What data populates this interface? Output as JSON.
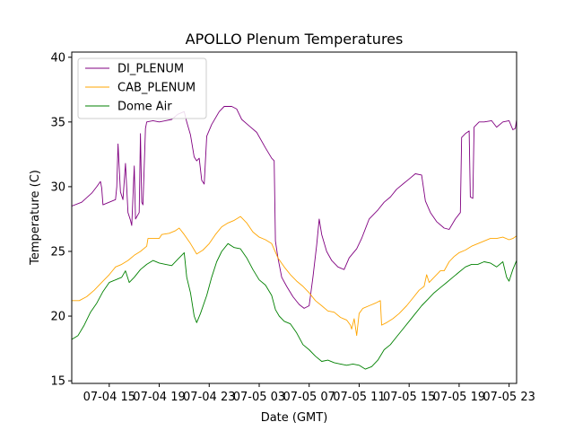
{
  "chart_data": {
    "type": "line",
    "title": "APOLLO Plenum Temperatures",
    "xlabel": "Date (GMT)",
    "ylabel": "Temperature (C)",
    "x_unit": "hours since 07-04 12:00 GMT",
    "xlim": [
      0,
      35.6
    ],
    "ylim": [
      14.8,
      40.4
    ],
    "yticks": [
      15,
      20,
      25,
      30,
      35,
      40
    ],
    "xticks": [
      {
        "x": 3,
        "label": "07-04 15"
      },
      {
        "x": 7,
        "label": "07-04 19"
      },
      {
        "x": 11,
        "label": "07-04 23"
      },
      {
        "x": 15,
        "label": "07-05 03"
      },
      {
        "x": 19,
        "label": "07-05 07"
      },
      {
        "x": 23,
        "label": "07-05 11"
      },
      {
        "x": 27,
        "label": "07-05 15"
      },
      {
        "x": 31,
        "label": "07-05 19"
      },
      {
        "x": 35,
        "label": "07-05 23"
      }
    ],
    "legend_position": "top-left",
    "series": [
      {
        "name": "DI_PLENUM",
        "color": "#800080",
        "points": [
          [
            0,
            28.5
          ],
          [
            0.8,
            28.8
          ],
          [
            1.6,
            29.5
          ],
          [
            2.0,
            30.0
          ],
          [
            2.3,
            30.4
          ],
          [
            2.4,
            29.9
          ],
          [
            2.5,
            28.6
          ],
          [
            3.0,
            28.8
          ],
          [
            3.5,
            29.0
          ],
          [
            3.6,
            30.0
          ],
          [
            3.7,
            33.3
          ],
          [
            3.8,
            31.5
          ],
          [
            3.9,
            29.6
          ],
          [
            4.1,
            29.0
          ],
          [
            4.3,
            31.8
          ],
          [
            4.5,
            28.0
          ],
          [
            4.7,
            27.4
          ],
          [
            4.8,
            27.0
          ],
          [
            5.0,
            31.6
          ],
          [
            5.1,
            27.5
          ],
          [
            5.4,
            28.0
          ],
          [
            5.5,
            34.1
          ],
          [
            5.6,
            28.8
          ],
          [
            5.7,
            28.6
          ],
          [
            5.9,
            34.5
          ],
          [
            6.0,
            35.0
          ],
          [
            6.5,
            35.1
          ],
          [
            7.0,
            35.0
          ],
          [
            7.5,
            35.1
          ],
          [
            8.0,
            35.2
          ],
          [
            8.5,
            35.6
          ],
          [
            9.0,
            35.8
          ],
          [
            9.2,
            35.0
          ],
          [
            9.5,
            34.0
          ],
          [
            9.8,
            32.3
          ],
          [
            10.0,
            32.0
          ],
          [
            10.2,
            32.2
          ],
          [
            10.4,
            30.5
          ],
          [
            10.6,
            30.2
          ],
          [
            10.8,
            33.9
          ],
          [
            11.2,
            34.8
          ],
          [
            11.8,
            35.8
          ],
          [
            12.2,
            36.2
          ],
          [
            12.8,
            36.2
          ],
          [
            13.2,
            36.0
          ],
          [
            13.6,
            35.2
          ],
          [
            14.2,
            34.7
          ],
          [
            14.8,
            34.2
          ],
          [
            15.5,
            33.0
          ],
          [
            16.0,
            32.2
          ],
          [
            16.2,
            32.0
          ],
          [
            16.3,
            25.8
          ],
          [
            16.5,
            24.5
          ],
          [
            16.8,
            23.0
          ],
          [
            17.2,
            22.3
          ],
          [
            17.7,
            21.5
          ],
          [
            18.2,
            20.9
          ],
          [
            18.6,
            20.6
          ],
          [
            19.0,
            20.8
          ],
          [
            19.3,
            23.0
          ],
          [
            19.6,
            25.5
          ],
          [
            19.8,
            27.5
          ],
          [
            20.0,
            26.3
          ],
          [
            20.4,
            25.0
          ],
          [
            20.8,
            24.3
          ],
          [
            21.3,
            23.8
          ],
          [
            21.8,
            23.6
          ],
          [
            22.2,
            24.5
          ],
          [
            22.8,
            25.2
          ],
          [
            23.2,
            26.0
          ],
          [
            23.8,
            27.5
          ],
          [
            24.5,
            28.2
          ],
          [
            25.0,
            28.8
          ],
          [
            25.5,
            29.2
          ],
          [
            26.0,
            29.8
          ],
          [
            26.5,
            30.2
          ],
          [
            27.0,
            30.6
          ],
          [
            27.5,
            31.0
          ],
          [
            28.0,
            30.9
          ],
          [
            28.3,
            28.9
          ],
          [
            28.7,
            28.0
          ],
          [
            29.2,
            27.3
          ],
          [
            29.8,
            26.8
          ],
          [
            30.2,
            26.7
          ],
          [
            30.7,
            27.5
          ],
          [
            31.1,
            28.0
          ],
          [
            31.2,
            33.8
          ],
          [
            31.5,
            34.1
          ],
          [
            31.8,
            34.3
          ],
          [
            31.9,
            29.2
          ],
          [
            32.1,
            29.1
          ],
          [
            32.2,
            34.6
          ],
          [
            32.6,
            35.0
          ],
          [
            33.0,
            35.0
          ],
          [
            33.6,
            35.1
          ],
          [
            34.0,
            34.6
          ],
          [
            34.5,
            35.0
          ],
          [
            35.0,
            35.1
          ],
          [
            35.3,
            34.4
          ],
          [
            35.5,
            34.5
          ],
          [
            35.6,
            35.2
          ]
        ]
      },
      {
        "name": "CAB_PLENUM",
        "color": "#ffa500",
        "points": [
          [
            0,
            21.2
          ],
          [
            0.6,
            21.2
          ],
          [
            1.2,
            21.5
          ],
          [
            1.8,
            22.0
          ],
          [
            2.5,
            22.7
          ],
          [
            3.0,
            23.2
          ],
          [
            3.5,
            23.8
          ],
          [
            4.0,
            24.0
          ],
          [
            4.5,
            24.3
          ],
          [
            5.0,
            24.7
          ],
          [
            5.5,
            25.0
          ],
          [
            6.0,
            25.4
          ],
          [
            6.1,
            26.0
          ],
          [
            6.5,
            26.0
          ],
          [
            7.0,
            26.0
          ],
          [
            7.2,
            26.3
          ],
          [
            7.8,
            26.4
          ],
          [
            8.3,
            26.6
          ],
          [
            8.6,
            26.8
          ],
          [
            9.0,
            26.3
          ],
          [
            9.5,
            25.6
          ],
          [
            10.0,
            24.8
          ],
          [
            10.5,
            25.1
          ],
          [
            11.0,
            25.6
          ],
          [
            11.5,
            26.3
          ],
          [
            12.0,
            26.9
          ],
          [
            12.5,
            27.2
          ],
          [
            13.0,
            27.4
          ],
          [
            13.5,
            27.7
          ],
          [
            14.0,
            27.2
          ],
          [
            14.5,
            26.5
          ],
          [
            15.0,
            26.1
          ],
          [
            15.5,
            25.9
          ],
          [
            16.0,
            25.6
          ],
          [
            16.5,
            24.5
          ],
          [
            17.0,
            23.8
          ],
          [
            17.5,
            23.2
          ],
          [
            18.0,
            22.7
          ],
          [
            18.5,
            22.3
          ],
          [
            19.0,
            21.8
          ],
          [
            19.5,
            21.2
          ],
          [
            20.0,
            20.8
          ],
          [
            20.5,
            20.4
          ],
          [
            21.0,
            20.3
          ],
          [
            21.5,
            19.9
          ],
          [
            22.0,
            19.7
          ],
          [
            22.3,
            19.3
          ],
          [
            22.4,
            19.0
          ],
          [
            22.6,
            19.8
          ],
          [
            22.8,
            18.5
          ],
          [
            23.0,
            20.2
          ],
          [
            23.3,
            20.6
          ],
          [
            23.8,
            20.8
          ],
          [
            24.3,
            21.0
          ],
          [
            24.7,
            21.2
          ],
          [
            24.8,
            19.3
          ],
          [
            25.2,
            19.5
          ],
          [
            25.7,
            19.8
          ],
          [
            26.2,
            20.2
          ],
          [
            26.8,
            20.8
          ],
          [
            27.3,
            21.4
          ],
          [
            27.8,
            22.0
          ],
          [
            28.2,
            22.3
          ],
          [
            28.4,
            23.2
          ],
          [
            28.6,
            22.6
          ],
          [
            29.0,
            23.0
          ],
          [
            29.5,
            23.5
          ],
          [
            29.8,
            23.5
          ],
          [
            30.2,
            24.2
          ],
          [
            30.6,
            24.6
          ],
          [
            31.0,
            24.9
          ],
          [
            31.5,
            25.1
          ],
          [
            32.0,
            25.4
          ],
          [
            32.5,
            25.6
          ],
          [
            33.0,
            25.8
          ],
          [
            33.5,
            26.0
          ],
          [
            34.0,
            26.0
          ],
          [
            34.5,
            26.1
          ],
          [
            35.0,
            25.9
          ],
          [
            35.3,
            26.0
          ],
          [
            35.6,
            26.2
          ]
        ]
      },
      {
        "name": "Dome Air",
        "color": "#008000",
        "points": [
          [
            0,
            18.2
          ],
          [
            0.5,
            18.5
          ],
          [
            1.0,
            19.3
          ],
          [
            1.5,
            20.3
          ],
          [
            2.0,
            21.0
          ],
          [
            2.5,
            21.9
          ],
          [
            3.0,
            22.6
          ],
          [
            3.5,
            22.8
          ],
          [
            4.0,
            23.0
          ],
          [
            4.3,
            23.5
          ],
          [
            4.6,
            22.6
          ],
          [
            5.0,
            23.0
          ],
          [
            5.5,
            23.6
          ],
          [
            6.0,
            24.0
          ],
          [
            6.5,
            24.3
          ],
          [
            7.0,
            24.1
          ],
          [
            7.5,
            24.0
          ],
          [
            8.0,
            23.9
          ],
          [
            8.5,
            24.4
          ],
          [
            9.0,
            24.9
          ],
          [
            9.2,
            23.0
          ],
          [
            9.5,
            21.8
          ],
          [
            9.8,
            20.0
          ],
          [
            10.0,
            19.5
          ],
          [
            10.3,
            20.2
          ],
          [
            10.8,
            21.6
          ],
          [
            11.2,
            23.0
          ],
          [
            11.6,
            24.2
          ],
          [
            12.0,
            25.0
          ],
          [
            12.5,
            25.6
          ],
          [
            13.0,
            25.3
          ],
          [
            13.5,
            25.2
          ],
          [
            14.0,
            24.5
          ],
          [
            14.5,
            23.6
          ],
          [
            15.0,
            22.8
          ],
          [
            15.5,
            22.4
          ],
          [
            16.0,
            21.6
          ],
          [
            16.3,
            20.5
          ],
          [
            16.6,
            20.0
          ],
          [
            17.0,
            19.6
          ],
          [
            17.5,
            19.4
          ],
          [
            18.0,
            18.7
          ],
          [
            18.5,
            17.8
          ],
          [
            19.0,
            17.4
          ],
          [
            19.5,
            16.9
          ],
          [
            20.0,
            16.5
          ],
          [
            20.5,
            16.6
          ],
          [
            21.0,
            16.4
          ],
          [
            21.5,
            16.3
          ],
          [
            22.0,
            16.2
          ],
          [
            22.5,
            16.3
          ],
          [
            23.0,
            16.2
          ],
          [
            23.5,
            15.9
          ],
          [
            24.0,
            16.1
          ],
          [
            24.5,
            16.6
          ],
          [
            25.0,
            17.4
          ],
          [
            25.5,
            17.8
          ],
          [
            26.0,
            18.4
          ],
          [
            26.5,
            19.0
          ],
          [
            27.0,
            19.6
          ],
          [
            27.5,
            20.2
          ],
          [
            28.0,
            20.8
          ],
          [
            28.5,
            21.3
          ],
          [
            29.0,
            21.8
          ],
          [
            29.5,
            22.2
          ],
          [
            30.0,
            22.6
          ],
          [
            30.5,
            23.0
          ],
          [
            31.0,
            23.4
          ],
          [
            31.5,
            23.8
          ],
          [
            32.0,
            24.0
          ],
          [
            32.5,
            24.0
          ],
          [
            33.0,
            24.2
          ],
          [
            33.5,
            24.1
          ],
          [
            34.0,
            23.8
          ],
          [
            34.5,
            24.2
          ],
          [
            34.8,
            23.0
          ],
          [
            35.0,
            22.7
          ],
          [
            35.3,
            23.6
          ],
          [
            35.6,
            24.3
          ]
        ]
      }
    ]
  }
}
